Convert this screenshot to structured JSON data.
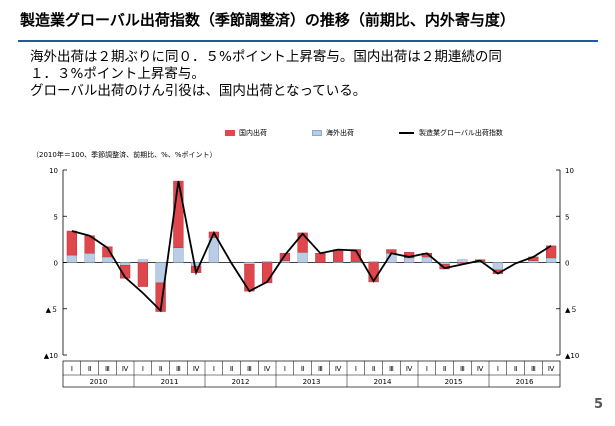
{
  "slide": {
    "title": "製造業グローバル出荷指数（季節調整済）の推移（前期比、内外寄与度）",
    "page_number": "5",
    "body_lines": [
      "海外出荷は２期ぶりに同０．５%ポイント上昇寄与。国内出荷は２期連続の同",
      "１．３%ポイント上昇寄与。",
      "グローバル出荷のけん引役は、国内出荷となっている。"
    ],
    "accent_color": "#1f5a9e"
  },
  "chart_data": {
    "type": "bar",
    "note": "（2010年＝100、季節調整済、前期比、%、%ポイント）",
    "legend": {
      "domestic": "国内出荷",
      "overseas": "海外出荷",
      "total": "製造業グローバル出荷指数"
    },
    "colors": {
      "domestic": "#e0474c",
      "overseas": "#b9cde5",
      "total": "#000000"
    },
    "quarters": [
      "Ⅰ",
      "Ⅱ",
      "Ⅲ",
      "Ⅳ",
      "Ⅰ",
      "Ⅱ",
      "Ⅲ",
      "Ⅳ",
      "Ⅰ",
      "Ⅱ",
      "Ⅲ",
      "Ⅳ",
      "Ⅰ",
      "Ⅱ",
      "Ⅲ",
      "Ⅳ",
      "Ⅰ",
      "Ⅱ",
      "Ⅲ",
      "Ⅳ",
      "Ⅰ",
      "Ⅱ",
      "Ⅲ",
      "Ⅳ",
      "Ⅰ",
      "Ⅱ",
      "Ⅲ",
      "Ⅳ"
    ],
    "years": [
      "2010",
      "2011",
      "2012",
      "2013",
      "2014",
      "2015",
      "2016"
    ],
    "ylim": [
      -10,
      10
    ],
    "left_ticks": [
      "10",
      "5",
      "0",
      "▲５",
      "▲10"
    ],
    "right_ticks": [
      "10",
      "5",
      "0",
      "▲５",
      "▲10"
    ],
    "grid": false,
    "series": [
      {
        "name": "国内出荷",
        "values": [
          2.6,
          1.9,
          1.1,
          -1.4,
          -2.6,
          -3.1,
          7.2,
          -0.7,
          0.6,
          0,
          -2.9,
          -2.2,
          0.8,
          2.1,
          1.0,
          1.3,
          1.3,
          -2.1,
          0.4,
          0.6,
          0.4,
          -0.5,
          -0.1,
          0.2,
          -0.4,
          0,
          0.4,
          1.3
        ]
      },
      {
        "name": "海外出荷",
        "values": [
          0.8,
          1.0,
          0.6,
          -0.3,
          0.3,
          -2.2,
          1.6,
          -0.4,
          2.7,
          0,
          -0.2,
          0.1,
          0.2,
          1.1,
          0,
          0.1,
          0.1,
          0.1,
          1.0,
          0.5,
          0.6,
          -0.2,
          0.3,
          0.1,
          -0.8,
          0,
          0.2,
          0.5
        ]
      },
      {
        "name": "製造業グローバル出荷指数",
        "values": [
          3.4,
          2.9,
          1.6,
          -1.6,
          -3.3,
          -5.2,
          8.8,
          -1.1,
          3.2,
          -0.1,
          -3.1,
          -2.1,
          0.8,
          3.1,
          1.0,
          1.4,
          1.3,
          -2.0,
          1.0,
          0.6,
          1.0,
          -0.6,
          -0.2,
          0.2,
          -1.2,
          -0.1,
          0.6,
          1.8
        ]
      }
    ]
  }
}
